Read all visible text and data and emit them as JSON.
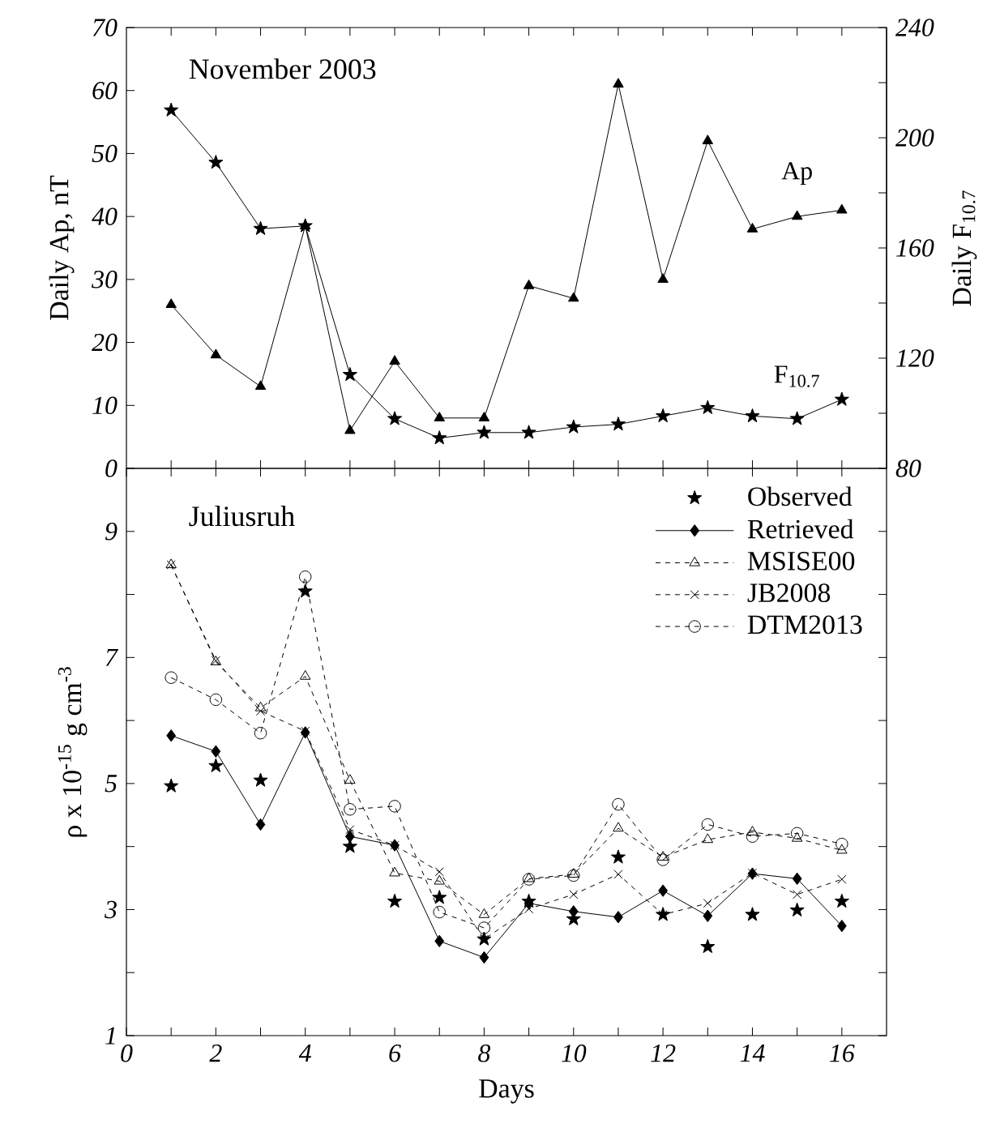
{
  "chart_data": [
    {
      "type": "line",
      "ylabel": "Daily Ap, nT",
      "y2label": "Daily F$_{10.7}$",
      "annotations": [
        "November 2003"
      ],
      "x": [
        1,
        2,
        3,
        4,
        5,
        6,
        7,
        8,
        9,
        10,
        11,
        12,
        13,
        14,
        15,
        16
      ],
      "xlim": [
        0,
        17
      ],
      "xticks": [
        {
          "value": 1,
          "label": null
        },
        {
          "value": 2,
          "label": null
        },
        {
          "value": 3,
          "label": null
        },
        {
          "value": 4,
          "label": null
        },
        {
          "value": 5,
          "label": null
        },
        {
          "value": 6,
          "label": null
        },
        {
          "value": 7,
          "label": null
        },
        {
          "value": 8,
          "label": null
        },
        {
          "value": 9,
          "label": null
        },
        {
          "value": 10,
          "label": null
        },
        {
          "value": 11,
          "label": null
        },
        {
          "value": 12,
          "label": null
        },
        {
          "value": 13,
          "label": null
        },
        {
          "value": 14,
          "label": null
        },
        {
          "value": 15,
          "label": null
        },
        {
          "value": 16,
          "label": null
        }
      ],
      "ylim": [
        0,
        70
      ],
      "yticks": [
        0,
        10,
        20,
        30,
        40,
        50,
        60,
        70
      ],
      "y2lim": [
        80,
        240
      ],
      "y2ticks": [
        80,
        {
          "value": 100,
          "label": null
        },
        120,
        {
          "value": 140,
          "label": null
        },
        160,
        {
          "value": 180,
          "label": null
        },
        200,
        {
          "value": 220,
          "label": null
        },
        240
      ],
      "tick_labels": "y",
      "line_style": "solid",
      "series": [
        {
          "name": "Ap",
          "color": "#000000",
          "marker": "triangle",
          "values": [
            26,
            18,
            13,
            38.5,
            6,
            17,
            8,
            8,
            29,
            27,
            61,
            30,
            52,
            38,
            40,
            41
          ]
        },
        {
          "name": "F$_{10.7}$",
          "color": "#000000",
          "marker": "star",
          "axis": "y2",
          "values": [
            210,
            191,
            167,
            168,
            114,
            98,
            91,
            93,
            93,
            95,
            96,
            99,
            102,
            99,
            98,
            105
          ]
        }
      ]
    },
    {
      "type": "line",
      "xlabel": "Days",
      "ylabel": "ρ x 10$^{-15}$ g cm$^{-3}$",
      "annotations": [
        "Juliusruh"
      ],
      "x": [
        1,
        2,
        3,
        4,
        5,
        6,
        7,
        8,
        9,
        10,
        11,
        12,
        13,
        14,
        15,
        16
      ],
      "xlim": [
        0,
        17
      ],
      "xticks": [
        0,
        {
          "value": 1,
          "label": null
        },
        2,
        {
          "value": 3,
          "label": null
        },
        4,
        {
          "value": 5,
          "label": null
        },
        6,
        {
          "value": 7,
          "label": null
        },
        8,
        {
          "value": 9,
          "label": null
        },
        10,
        {
          "value": 11,
          "label": null
        },
        12,
        {
          "value": 13,
          "label": null
        },
        14,
        {
          "value": 15,
          "label": null
        },
        16
      ],
      "ylim": [
        1,
        10
      ],
      "yticks": [
        1,
        {
          "value": 2,
          "label": null
        },
        3,
        {
          "value": 4,
          "label": null
        },
        5,
        {
          "value": 6,
          "label": null
        },
        7,
        {
          "value": 8,
          "label": null
        },
        9
      ],
      "legend": "top right",
      "series": [
        {
          "name": "Observed",
          "type": "scatter",
          "color": "#000000",
          "marker": "star",
          "values": [
            4.96,
            5.28,
            5.05,
            8.05,
            4.0,
            3.13,
            3.19,
            2.53,
            3.13,
            2.85,
            3.83,
            2.92,
            2.41,
            2.92,
            2.99,
            3.13
          ]
        },
        {
          "name": "Retrieved",
          "color": "#000000",
          "marker": "diamond",
          "line_style": "solid",
          "values": [
            5.76,
            5.51,
            4.35,
            5.81,
            4.16,
            4.02,
            2.5,
            2.24,
            3.1,
            2.97,
            2.88,
            3.3,
            2.9,
            3.57,
            3.49,
            2.74
          ]
        },
        {
          "name": "MSISE00",
          "color": "#000000",
          "marker": "triangle",
          "line_style": "dashed",
          "values": [
            8.47,
            6.93,
            6.2,
            6.7,
            5.05,
            3.58,
            3.45,
            2.92,
            3.49,
            3.56,
            4.29,
            3.83,
            4.11,
            4.23,
            4.13,
            3.94
          ]
        },
        {
          "name": "JB2008",
          "color": "#000000",
          "marker": "cross",
          "line_style": "dashed",
          "values": [
            8.47,
            6.95,
            6.15,
            5.83,
            4.27,
            4.02,
            3.6,
            2.53,
            3.01,
            3.24,
            3.56,
            2.92,
            3.1,
            3.58,
            3.24,
            3.48
          ]
        },
        {
          "name": "DTM2013",
          "color": "#000000",
          "marker": "circle",
          "line_style": "dashed",
          "values": [
            6.68,
            6.33,
            5.8,
            8.28,
            4.59,
            4.64,
            2.96,
            2.71,
            3.48,
            3.54,
            4.67,
            3.79,
            4.35,
            4.16,
            4.21,
            4.04
          ]
        }
      ]
    }
  ]
}
